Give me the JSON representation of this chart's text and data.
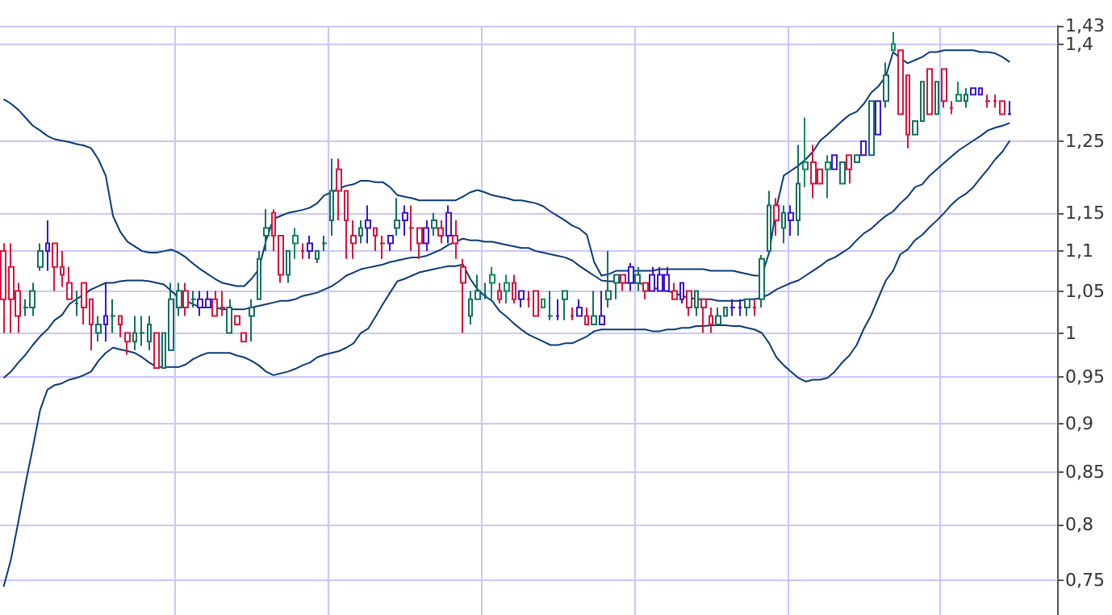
{
  "chart_data": {
    "type": "candlestick",
    "categories": [
      null,
      null,
      null,
      null,
      null,
      null,
      null,
      null,
      null,
      null,
      null,
      null,
      null,
      null,
      null,
      null,
      null,
      null,
      null,
      null,
      null,
      null,
      null,
      null,
      null,
      null,
      null,
      null,
      null,
      null,
      null,
      null,
      null,
      null,
      null,
      null,
      null,
      null,
      null,
      null,
      null,
      null,
      null,
      null,
      null,
      null,
      null,
      null,
      null,
      null,
      null,
      null,
      null,
      null,
      null,
      null,
      null,
      null,
      null,
      null,
      null,
      null,
      null,
      null,
      null,
      null,
      null,
      null,
      null,
      null,
      null,
      null,
      null,
      null,
      null,
      null,
      null,
      null,
      null,
      null,
      null,
      null,
      null,
      null,
      null,
      null,
      null,
      null,
      null,
      null,
      null,
      null,
      null,
      null,
      null,
      null,
      null,
      null,
      null,
      null,
      null,
      null,
      null,
      null,
      null,
      null,
      null,
      null,
      null,
      null,
      null,
      null,
      null,
      null,
      null,
      null,
      null,
      null,
      null,
      null,
      null,
      null,
      null,
      null,
      null,
      null,
      null,
      null,
      null,
      null,
      null,
      null,
      null,
      null,
      null,
      null,
      null,
      null,
      null,
      null,
      null,
      null,
      null,
      null,
      null
    ],
    "ohlc": [
      [
        1.1,
        1.11,
        1.0,
        1.04
      ],
      [
        1.08,
        1.11,
        1.0,
        1.04
      ],
      [
        1.05,
        1.06,
        1.0,
        1.02
      ],
      [
        1.03,
        1.04,
        1.02,
        1.03
      ],
      [
        1.03,
        1.06,
        1.02,
        1.05
      ],
      [
        1.08,
        1.11,
        1.075,
        1.1
      ],
      [
        1.11,
        1.14,
        1.075,
        1.1
      ],
      [
        1.11,
        1.11,
        1.05,
        1.08
      ],
      [
        1.08,
        1.1,
        1.055,
        1.07
      ],
      [
        1.06,
        1.08,
        1.04,
        1.04
      ],
      [
        1.035,
        1.05,
        1.02,
        1.035
      ],
      [
        1.06,
        1.06,
        1.01,
        1.03
      ],
      [
        1.04,
        1.04,
        0.98,
        1.01
      ],
      [
        1.0,
        1.02,
        0.99,
        1.01
      ],
      [
        1.02,
        1.06,
        0.99,
        1.01
      ],
      [
        1.02,
        1.04,
        1.0,
        1.02
      ],
      [
        1.02,
        1.02,
        0.995,
        1.01
      ],
      [
        1.0,
        1.0,
        0.975,
        0.99
      ],
      [
        0.99,
        1.02,
        0.98,
        1.0
      ],
      [
        1.0,
        1.02,
        0.985,
        1.0
      ],
      [
        0.99,
        1.02,
        0.98,
        1.01
      ],
      [
        1.0,
        1.0,
        0.96,
        0.96
      ],
      [
        0.96,
        1.0,
        0.96,
        1.0
      ],
      [
        0.98,
        1.06,
        0.98,
        1.04
      ],
      [
        1.03,
        1.06,
        1.02,
        1.05
      ],
      [
        1.05,
        1.06,
        1.02,
        1.03
      ],
      [
        1.04,
        1.05,
        1.03,
        1.04
      ],
      [
        1.04,
        1.05,
        1.02,
        1.03
      ],
      [
        1.04,
        1.05,
        1.03,
        1.03
      ],
      [
        1.04,
        1.05,
        1.02,
        1.02
      ],
      [
        1.03,
        1.05,
        1.02,
        1.03
      ],
      [
        1.0,
        1.04,
        1.0,
        1.03
      ],
      [
        1.02,
        1.02,
        1.01,
        1.01
      ],
      [
        1.0,
        1.0,
        0.99,
        0.99
      ],
      [
        1.02,
        1.04,
        0.99,
        1.03
      ],
      [
        1.04,
        1.1,
        1.04,
        1.09
      ],
      [
        1.12,
        1.155,
        1.1,
        1.13
      ],
      [
        1.15,
        1.155,
        1.1,
        1.12
      ],
      [
        1.12,
        1.12,
        1.06,
        1.07
      ],
      [
        1.07,
        1.1,
        1.06,
        1.1
      ],
      [
        1.12,
        1.13,
        1.09,
        1.11
      ],
      [
        1.1,
        1.11,
        1.09,
        1.1
      ],
      [
        1.11,
        1.12,
        1.09,
        1.1
      ],
      [
        1.09,
        1.1,
        1.085,
        1.1
      ],
      [
        1.11,
        1.12,
        1.1,
        1.11
      ],
      [
        1.14,
        1.225,
        1.12,
        1.18
      ],
      [
        1.21,
        1.225,
        1.14,
        1.18
      ],
      [
        1.18,
        1.18,
        1.09,
        1.14
      ],
      [
        1.12,
        1.14,
        1.09,
        1.11
      ],
      [
        1.12,
        1.14,
        1.11,
        1.13
      ],
      [
        1.14,
        1.16,
        1.11,
        1.13
      ],
      [
        1.13,
        1.13,
        1.1,
        1.12
      ],
      [
        1.11,
        1.12,
        1.09,
        1.11
      ],
      [
        1.12,
        1.12,
        1.1,
        1.11
      ],
      [
        1.13,
        1.17,
        1.12,
        1.14
      ],
      [
        1.15,
        1.16,
        1.12,
        1.14
      ],
      [
        1.13,
        1.16,
        1.1,
        1.13
      ],
      [
        1.13,
        1.13,
        1.09,
        1.11
      ],
      [
        1.13,
        1.14,
        1.1,
        1.11
      ],
      [
        1.13,
        1.15,
        1.12,
        1.14
      ],
      [
        1.13,
        1.14,
        1.11,
        1.12
      ],
      [
        1.15,
        1.16,
        1.11,
        1.12
      ],
      [
        1.12,
        1.14,
        1.09,
        1.11
      ],
      [
        1.08,
        1.09,
        1.0,
        1.06
      ],
      [
        1.02,
        1.05,
        1.01,
        1.04
      ],
      [
        1.04,
        1.07,
        1.04,
        1.05
      ],
      [
        1.045,
        1.06,
        1.04,
        1.045
      ],
      [
        1.07,
        1.08,
        1.04,
        1.06
      ],
      [
        1.05,
        1.06,
        1.035,
        1.04
      ],
      [
        1.06,
        1.07,
        1.035,
        1.05
      ],
      [
        1.06,
        1.07,
        1.035,
        1.04
      ],
      [
        1.05,
        1.05,
        1.03,
        1.04
      ],
      [
        1.04,
        1.05,
        1.03,
        1.04
      ],
      [
        1.05,
        1.05,
        1.02,
        1.02
      ],
      [
        1.04,
        1.04,
        1.03,
        1.03
      ],
      [
        1.02,
        1.05,
        1.015,
        1.02
      ],
      [
        1.02,
        1.04,
        1.015,
        1.02
      ],
      [
        1.04,
        1.05,
        1.015,
        1.05
      ],
      [
        1.02,
        1.03,
        1.015,
        1.02
      ],
      [
        1.03,
        1.04,
        1.02,
        1.02
      ],
      [
        1.02,
        1.03,
        1.01,
        1.01
      ],
      [
        1.01,
        1.05,
        1.01,
        1.02
      ],
      [
        1.01,
        1.05,
        1.01,
        1.02
      ],
      [
        1.04,
        1.1,
        1.03,
        1.05
      ],
      [
        1.06,
        1.07,
        1.04,
        1.07
      ],
      [
        1.07,
        1.07,
        1.05,
        1.06
      ],
      [
        1.08,
        1.085,
        1.05,
        1.06
      ],
      [
        1.06,
        1.08,
        1.05,
        1.07
      ],
      [
        1.06,
        1.06,
        1.04,
        1.05
      ],
      [
        1.07,
        1.08,
        1.05,
        1.05
      ],
      [
        1.07,
        1.08,
        1.05,
        1.05
      ],
      [
        1.07,
        1.08,
        1.05,
        1.05
      ],
      [
        1.05,
        1.06,
        1.04,
        1.04
      ],
      [
        1.06,
        1.06,
        1.035,
        1.04
      ],
      [
        1.05,
        1.05,
        1.02,
        1.03
      ],
      [
        1.03,
        1.05,
        1.02,
        1.05
      ],
      [
        1.04,
        1.04,
        1.0,
        1.03
      ],
      [
        1.02,
        1.03,
        1.0,
        1.01
      ],
      [
        1.01,
        1.03,
        1.01,
        1.02
      ],
      [
        1.02,
        1.03,
        1.02,
        1.03
      ],
      [
        1.03,
        1.04,
        1.02,
        1.03
      ],
      [
        1.03,
        1.04,
        1.02,
        1.03
      ],
      [
        1.03,
        1.04,
        1.02,
        1.04
      ],
      [
        1.03,
        1.04,
        1.02,
        1.03
      ],
      [
        1.04,
        1.095,
        1.03,
        1.09
      ],
      [
        1.1,
        1.18,
        1.1,
        1.16
      ],
      [
        1.16,
        1.17,
        1.12,
        1.14
      ],
      [
        1.13,
        1.16,
        1.11,
        1.15
      ],
      [
        1.15,
        1.16,
        1.12,
        1.14
      ],
      [
        1.14,
        1.245,
        1.12,
        1.19
      ],
      [
        1.22,
        1.285,
        1.185,
        1.21
      ],
      [
        1.22,
        1.245,
        1.17,
        1.19
      ],
      [
        1.21,
        1.21,
        1.19,
        1.19
      ],
      [
        1.22,
        1.23,
        1.17,
        1.21
      ],
      [
        1.23,
        1.23,
        1.21,
        1.21
      ],
      [
        1.19,
        1.22,
        1.19,
        1.22
      ],
      [
        1.23,
        1.23,
        1.19,
        1.21
      ],
      [
        1.22,
        1.23,
        1.22,
        1.23
      ],
      [
        1.25,
        1.25,
        1.23,
        1.23
      ],
      [
        1.23,
        1.31,
        1.23,
        1.31
      ],
      [
        1.26,
        1.31,
        1.26,
        1.31
      ],
      [
        1.31,
        1.37,
        1.3,
        1.35
      ],
      [
        1.4,
        1.42,
        1.39,
        1.39
      ],
      [
        1.39,
        1.39,
        1.29,
        1.29
      ],
      [
        1.35,
        1.35,
        1.24,
        1.26
      ],
      [
        1.26,
        1.28,
        1.26,
        1.28
      ],
      [
        1.28,
        1.34,
        1.28,
        1.34
      ],
      [
        1.36,
        1.36,
        1.29,
        1.29
      ],
      [
        1.29,
        1.34,
        1.29,
        1.34
      ],
      [
        1.36,
        1.36,
        1.3,
        1.31
      ],
      [
        1.3,
        1.31,
        1.29,
        1.3
      ],
      [
        1.32,
        1.34,
        1.31,
        1.31
      ],
      [
        1.31,
        1.33,
        1.3,
        1.32
      ],
      [
        1.33,
        1.33,
        1.32,
        1.32
      ],
      [
        1.33,
        1.33,
        1.32,
        1.32
      ],
      [
        1.31,
        1.32,
        1.3,
        1.31
      ],
      [
        1.31,
        1.32,
        1.3,
        1.31
      ],
      [
        1.31,
        1.31,
        1.29,
        1.29
      ],
      [
        1.29,
        1.31,
        1.29,
        1.29
      ],
      null,
      null,
      null,
      null,
      null,
      null
    ],
    "colors": [
      "#d8143c",
      "#d8143c",
      "#d8143c",
      "#127060",
      "#127060",
      "#127060",
      "#3c14d2",
      "#d8143c",
      "#d8143c",
      "#d8143c",
      "#127060",
      "#d8143c",
      "#d8143c",
      "#127060",
      "#3c14d2",
      "#127060",
      "#d8143c",
      "#d8143c",
      "#127060",
      "#127060",
      "#127060",
      "#d8143c",
      "#127060",
      "#127060",
      "#127060",
      "#d8143c",
      "#127060",
      "#3c14d2",
      "#3c14d2",
      "#d8143c",
      "#d8143c",
      "#127060",
      "#d8143c",
      "#d8143c",
      "#127060",
      "#127060",
      "#127060",
      "#d8143c",
      "#d8143c",
      "#127060",
      "#0e8a5c",
      "#d8143c",
      "#3c14d2",
      "#127060",
      "#127060",
      "#127060",
      "#d8143c",
      "#d8143c",
      "#d8143c",
      "#127060",
      "#3c14d2",
      "#d8143c",
      "#d8143c",
      "#3c14d2",
      "#127060",
      "#3c14d2",
      "#d8143c",
      "#d8143c",
      "#3c14d2",
      "#127060",
      "#d8143c",
      "#3c14d2",
      "#d8143c",
      "#d8143c",
      "#127060",
      "#127060",
      "#127060",
      "#0e8a5c",
      "#d8143c",
      "#0e8a5c",
      "#d8143c",
      "#3c14d2",
      "#d8143c",
      "#d8143c",
      "#0e8a5c",
      "#127060",
      "#3c14d2",
      "#127060",
      "#d8143c",
      "#3c14d2",
      "#d8143c",
      "#127060",
      "#3c14d2",
      "#127060",
      "#127060",
      "#d8143c",
      "#3c14d2",
      "#127060",
      "#d8143c",
      "#3c14d2",
      "#3c14d2",
      "#3c14d2",
      "#d8143c",
      "#3c14d2",
      "#d8143c",
      "#127060",
      "#d8143c",
      "#d8143c",
      "#127060",
      "#127060",
      "#3c14d2",
      "#3c14d2",
      "#127060",
      "#d8143c",
      "#127060",
      "#127060",
      "#d8143c",
      "#127060",
      "#3c14d2",
      "#127060",
      "#0e8a5c",
      "#d8143c",
      "#d8143c",
      "#0e8a5c",
      "#3c14d2",
      "#127060",
      "#d8143c",
      "#127060",
      "#3c14d2",
      "#127060",
      "#3c14d2",
      "#127060",
      "#0e8a5c",
      "#d8143c",
      "#d8143c",
      "#127060",
      "#127060",
      "#d8143c",
      "#127060",
      "#d8143c",
      "#d8143c",
      "#0e8a5c",
      "#127060",
      "#3c14d2",
      "#3c14d2",
      "#d8143c",
      "#d8143c",
      "#d8143c",
      "#3c14d2",
      null,
      null,
      null,
      null,
      null,
      null
    ],
    "series": [
      {
        "type": "line",
        "color": "#0a3a78",
        "values": [
          1.313,
          1.306,
          1.297,
          1.285,
          1.273,
          1.266,
          1.258,
          1.253,
          1.251,
          1.249,
          1.246,
          1.244,
          1.24,
          1.224,
          1.201,
          1.146,
          1.125,
          1.112,
          1.106,
          1.1,
          1.098,
          1.098,
          1.1,
          1.102,
          1.098,
          1.092,
          1.084,
          1.077,
          1.071,
          1.065,
          1.06,
          1.058,
          1.056,
          1.056,
          1.065,
          1.077,
          1.114,
          1.142,
          1.146,
          1.15,
          1.152,
          1.154,
          1.157,
          1.163,
          1.174,
          1.178,
          1.183,
          1.187,
          1.189,
          1.194,
          1.194,
          1.192,
          1.192,
          1.185,
          1.174,
          1.172,
          1.17,
          1.167,
          1.167,
          1.167,
          1.167,
          1.167,
          1.167,
          1.172,
          1.178,
          1.181,
          1.178,
          1.174,
          1.172,
          1.17,
          1.167,
          1.167,
          1.165,
          1.163,
          1.159,
          1.152,
          1.146,
          1.14,
          1.133,
          1.129,
          1.121,
          1.086,
          1.069,
          1.071,
          1.075,
          1.075,
          1.075,
          1.075,
          1.075,
          1.075,
          1.077,
          1.077,
          1.077,
          1.077,
          1.077,
          1.077,
          1.077,
          1.075,
          1.075,
          1.075,
          1.075,
          1.073,
          1.071,
          1.069,
          1.069,
          1.098,
          1.157,
          1.201,
          1.208,
          1.215,
          1.224,
          1.235,
          1.251,
          1.26,
          1.27,
          1.28,
          1.289,
          1.294,
          1.306,
          1.323,
          1.333,
          1.348,
          1.387,
          1.377,
          1.369,
          1.374,
          1.379,
          1.387,
          1.387,
          1.39,
          1.39,
          1.39,
          1.39,
          1.39,
          1.387,
          1.387,
          1.385,
          1.379,
          1.371,
          null,
          null,
          null,
          null,
          null,
          null
        ]
      },
      {
        "type": "line",
        "color": "#0a3a78",
        "values": [
          0.949,
          0.956,
          0.966,
          0.975,
          0.986,
          0.996,
          1.004,
          1.015,
          1.021,
          1.034,
          1.04,
          1.046,
          1.052,
          1.056,
          1.06,
          1.06,
          1.062,
          1.063,
          1.063,
          1.063,
          1.062,
          1.06,
          1.058,
          1.05,
          1.042,
          1.038,
          1.034,
          1.03,
          1.03,
          1.03,
          1.028,
          1.028,
          1.028,
          1.028,
          1.03,
          1.032,
          1.034,
          1.036,
          1.038,
          1.038,
          1.04,
          1.044,
          1.046,
          1.048,
          1.052,
          1.056,
          1.062,
          1.069,
          1.073,
          1.077,
          1.079,
          1.081,
          1.083,
          1.086,
          1.088,
          1.09,
          1.092,
          1.092,
          1.094,
          1.098,
          1.102,
          1.108,
          1.112,
          1.116,
          1.114,
          1.114,
          1.112,
          1.112,
          1.11,
          1.108,
          1.106,
          1.104,
          1.104,
          1.1,
          1.098,
          1.096,
          1.094,
          1.092,
          1.088,
          1.081,
          1.075,
          1.069,
          1.063,
          1.062,
          1.062,
          1.06,
          1.06,
          1.06,
          1.058,
          1.054,
          1.052,
          1.05,
          1.048,
          1.044,
          1.042,
          1.04,
          1.04,
          1.04,
          1.038,
          1.038,
          1.038,
          1.038,
          1.04,
          1.04,
          1.042,
          1.046,
          1.052,
          1.056,
          1.06,
          1.063,
          1.069,
          1.075,
          1.081,
          1.088,
          1.092,
          1.098,
          1.104,
          1.114,
          1.123,
          1.129,
          1.138,
          1.146,
          1.152,
          1.163,
          1.172,
          1.185,
          1.189,
          1.201,
          1.21,
          1.219,
          1.228,
          1.237,
          1.244,
          1.251,
          1.258,
          1.266,
          1.27,
          1.273,
          1.277,
          null,
          null,
          null,
          null,
          null,
          null
        ]
      },
      {
        "type": "line",
        "color": "#0a3a78",
        "values": [
          0.744,
          0.768,
          0.802,
          0.839,
          0.875,
          0.914,
          0.936,
          0.941,
          0.943,
          0.947,
          0.949,
          0.952,
          0.956,
          0.968,
          0.977,
          0.983,
          0.981,
          0.979,
          0.977,
          0.972,
          0.966,
          0.961,
          0.961,
          0.961,
          0.961,
          0.964,
          0.97,
          0.974,
          0.977,
          0.977,
          0.977,
          0.977,
          0.974,
          0.972,
          0.968,
          0.963,
          0.956,
          0.952,
          0.954,
          0.956,
          0.959,
          0.963,
          0.966,
          0.972,
          0.975,
          0.977,
          0.979,
          0.983,
          0.988,
          1.0,
          1.005,
          1.019,
          1.034,
          1.048,
          1.062,
          1.065,
          1.069,
          1.073,
          1.075,
          1.077,
          1.079,
          1.081,
          1.081,
          1.083,
          1.065,
          1.052,
          1.044,
          1.038,
          1.026,
          1.019,
          1.011,
          1.004,
          0.998,
          0.994,
          0.99,
          0.986,
          0.986,
          0.988,
          0.988,
          0.992,
          0.996,
          1.002,
          1.004,
          1.004,
          1.004,
          1.004,
          1.004,
          1.004,
          1.004,
          1.002,
          1.002,
          1.004,
          1.004,
          1.006,
          1.006,
          1.008,
          1.008,
          1.009,
          1.009,
          1.009,
          1.008,
          1.008,
          1.006,
          1.004,
          1.0,
          0.988,
          0.972,
          0.963,
          0.956,
          0.949,
          0.945,
          0.947,
          0.947,
          0.949,
          0.956,
          0.966,
          0.974,
          0.986,
          1.005,
          1.021,
          1.042,
          1.063,
          1.075,
          1.096,
          1.102,
          1.114,
          1.121,
          1.131,
          1.14,
          1.15,
          1.161,
          1.17,
          1.176,
          1.185,
          1.198,
          1.21,
          1.224,
          1.235,
          1.251,
          null,
          null,
          null,
          null,
          null,
          null
        ]
      }
    ],
    "ylim": [
      0.72,
      1.43
    ],
    "yticks": [
      {
        "value": 0.75,
        "label": "0,75"
      },
      {
        "value": 0.8,
        "label": "0,8"
      },
      {
        "value": 0.85,
        "label": "0,85"
      },
      {
        "value": 0.9,
        "label": "0,9"
      },
      {
        "value": 0.95,
        "label": "0,95"
      },
      {
        "value": 1,
        "label": "1"
      },
      {
        "value": 1.05,
        "label": "1,05"
      },
      {
        "value": 1.1,
        "label": "1,1"
      },
      {
        "value": 1.15,
        "label": "1,15"
      },
      {
        "value": 1.25,
        "label": "1,25"
      },
      {
        "value": 1.4,
        "label": "1,4"
      },
      {
        "value": 1.43,
        "label": "1,43"
      }
    ],
    "log": "y",
    "grid": true,
    "tick_labels": "y"
  }
}
